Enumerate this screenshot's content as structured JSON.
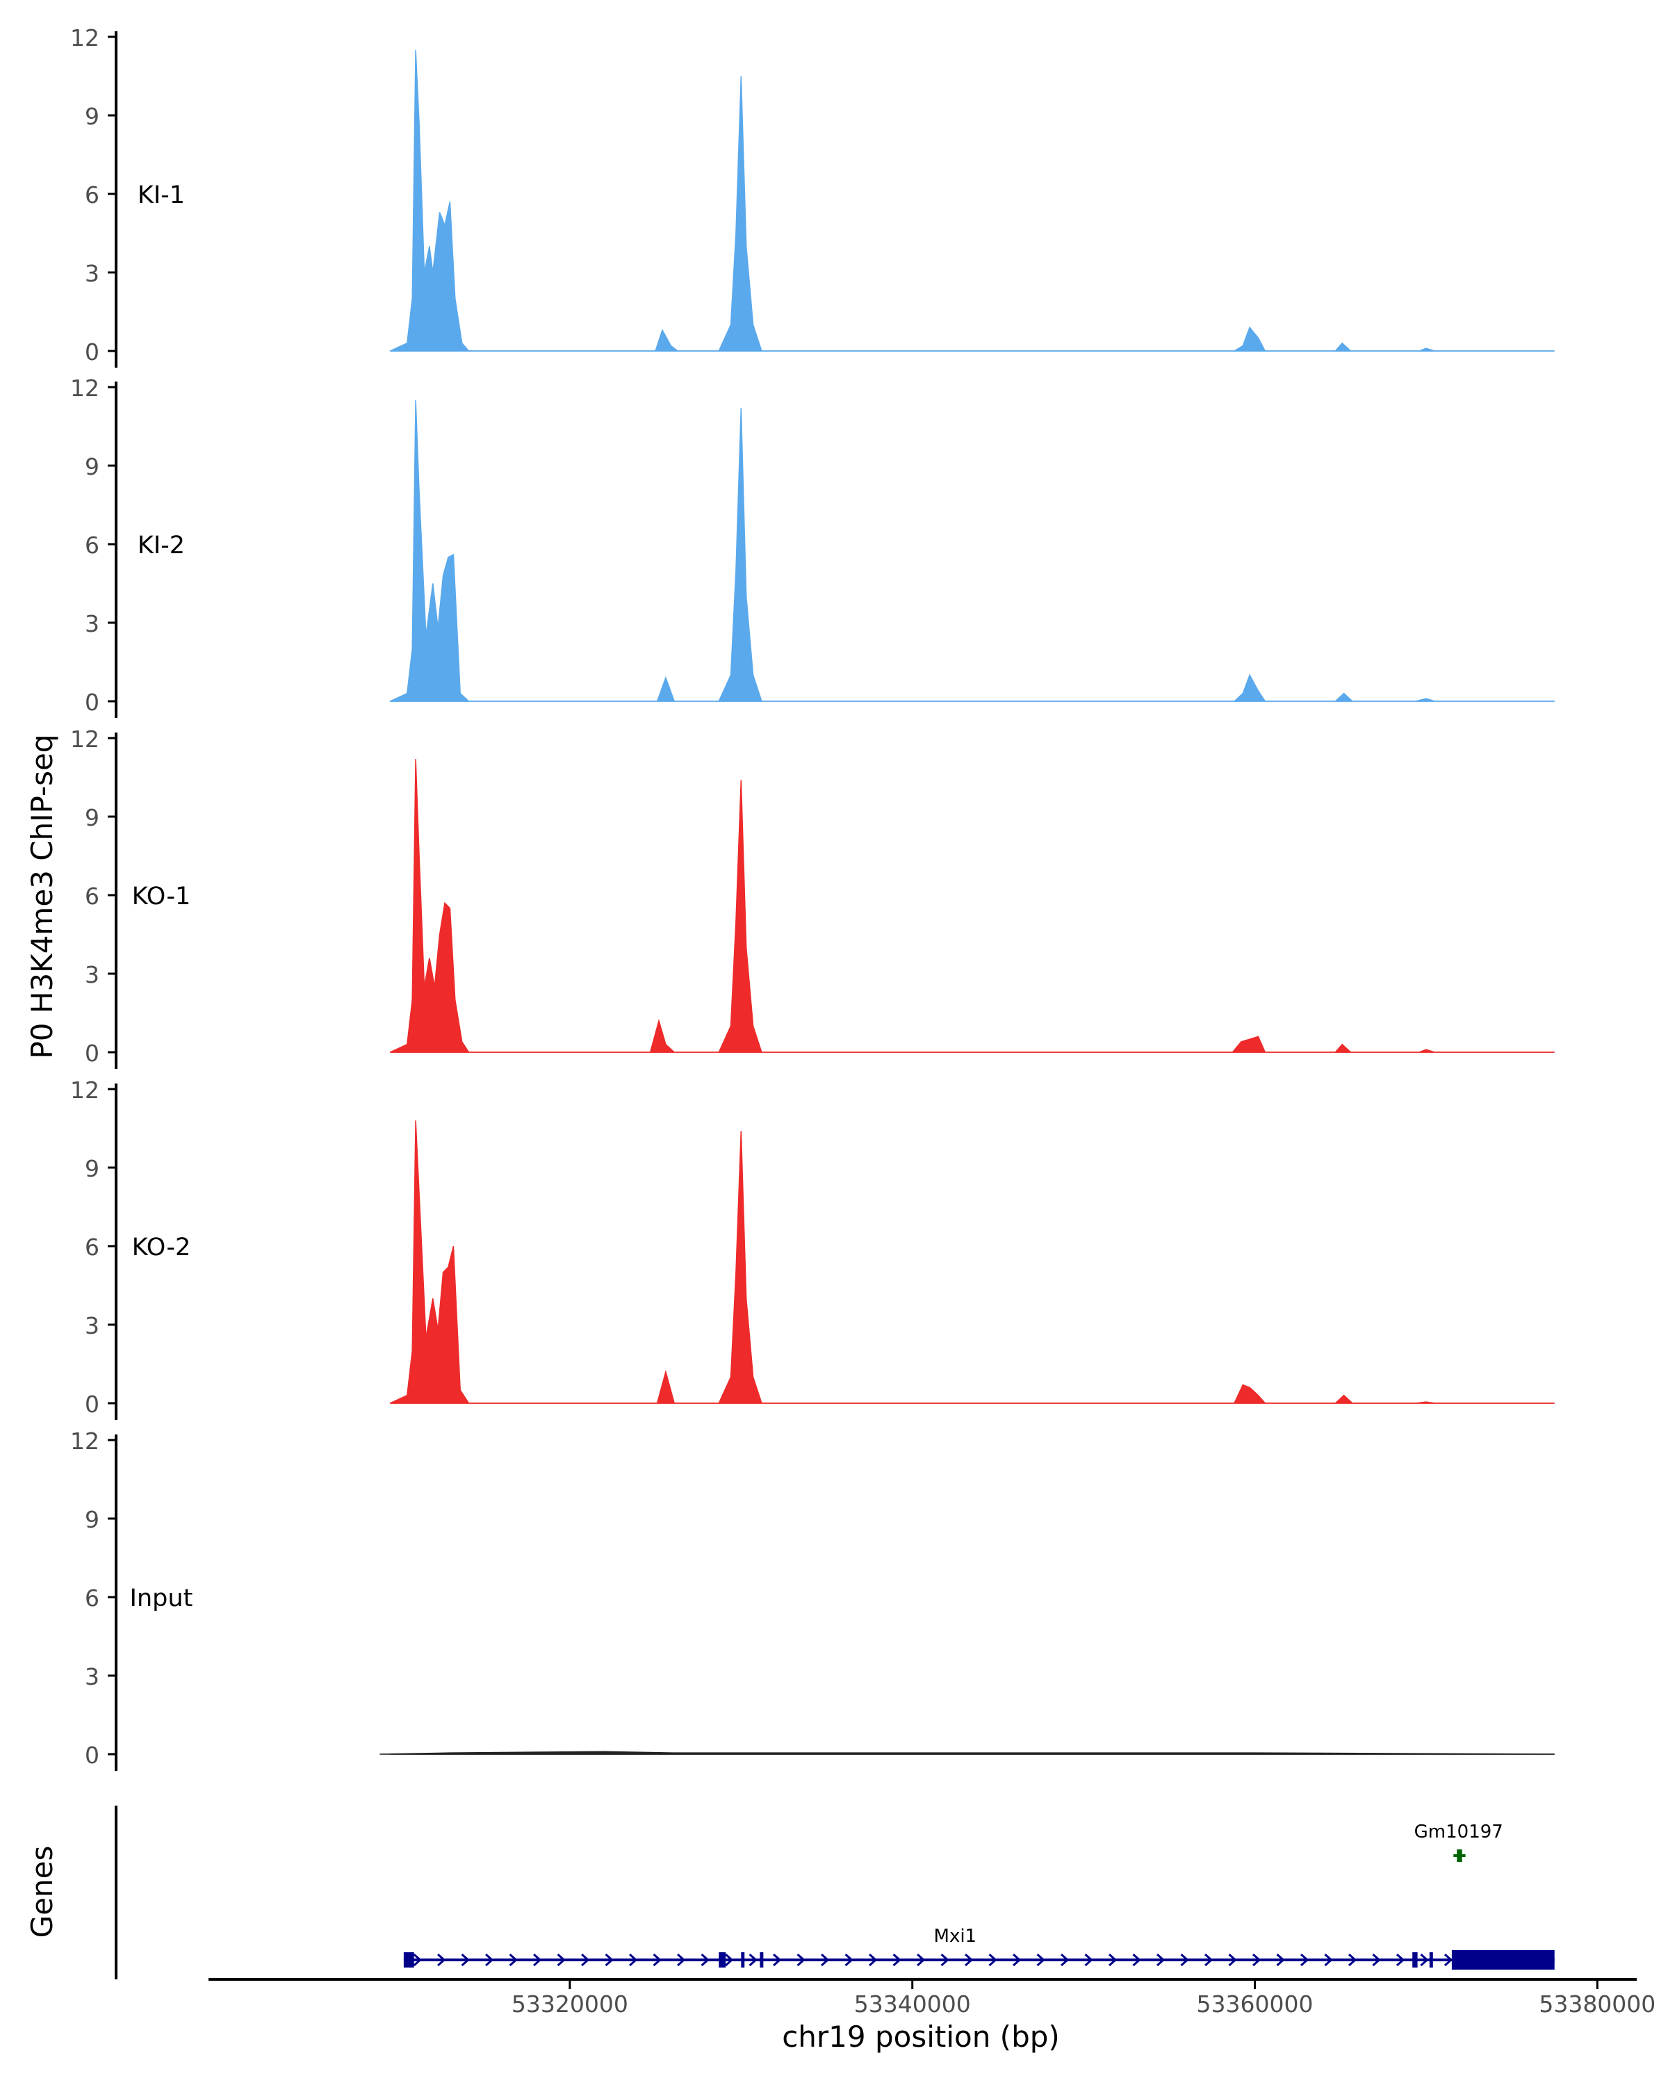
{
  "chart_data": {
    "type": "area",
    "ylabel": "P0 H3K4me3 ChIP-seq",
    "xlabel": "chr19 position (bp)",
    "xlim": [
      53298900,
      53382300
    ],
    "ylim": [
      0,
      12
    ],
    "y_ticks": [
      "0",
      "3",
      "6",
      "9",
      "12"
    ],
    "x_ticks": [
      {
        "value": 53320000,
        "label": "53320000"
      },
      {
        "value": 53340000,
        "label": "53340000"
      },
      {
        "value": 53360000,
        "label": "53360000"
      },
      {
        "value": 53380000,
        "label": "53380000"
      }
    ],
    "colors": {
      "KI": "#5aa9ec",
      "KO": "#ee2a2a",
      "Input": "#222222",
      "gene_main": "#00008b",
      "gene_small": "#006400"
    },
    "series": [
      {
        "name": "KI-1",
        "color": "#5aa9ec",
        "points": [
          [
            53309500,
            0
          ],
          [
            53310500,
            0.3
          ],
          [
            53310800,
            2.0
          ],
          [
            53311000,
            11.5
          ],
          [
            53311200,
            8.7
          ],
          [
            53311500,
            3.0
          ],
          [
            53311800,
            4.0
          ],
          [
            53312000,
            3.0
          ],
          [
            53312400,
            5.3
          ],
          [
            53312700,
            4.8
          ],
          [
            53313000,
            5.7
          ],
          [
            53313300,
            2.0
          ],
          [
            53313700,
            0.3
          ],
          [
            53314100,
            0
          ],
          [
            53325000,
            0
          ],
          [
            53325400,
            0.8
          ],
          [
            53325900,
            0.2
          ],
          [
            53326300,
            0
          ],
          [
            53328700,
            0
          ],
          [
            53329400,
            1.0
          ],
          [
            53329700,
            4.5
          ],
          [
            53330000,
            10.5
          ],
          [
            53330300,
            4.0
          ],
          [
            53330700,
            1.0
          ],
          [
            53331200,
            0
          ],
          [
            53358800,
            0
          ],
          [
            53359300,
            0.2
          ],
          [
            53359700,
            0.9
          ],
          [
            53360200,
            0.5
          ],
          [
            53360600,
            0
          ],
          [
            53364700,
            0
          ],
          [
            53365100,
            0.3
          ],
          [
            53365600,
            0
          ],
          [
            53369600,
            0
          ],
          [
            53370000,
            0.1
          ],
          [
            53370500,
            0
          ],
          [
            53377500,
            0
          ]
        ]
      },
      {
        "name": "KI-2",
        "color": "#5aa9ec",
        "points": [
          [
            53309500,
            0
          ],
          [
            53310500,
            0.3
          ],
          [
            53310800,
            2.0
          ],
          [
            53311000,
            11.5
          ],
          [
            53311200,
            8.0
          ],
          [
            53311600,
            2.5
          ],
          [
            53312000,
            4.5
          ],
          [
            53312300,
            2.8
          ],
          [
            53312600,
            4.8
          ],
          [
            53312900,
            5.5
          ],
          [
            53313200,
            5.6
          ],
          [
            53313600,
            0.3
          ],
          [
            53314100,
            0
          ],
          [
            53325100,
            0
          ],
          [
            53325600,
            0.9
          ],
          [
            53326100,
            0
          ],
          [
            53328700,
            0
          ],
          [
            53329400,
            1.0
          ],
          [
            53329700,
            5.0
          ],
          [
            53330000,
            11.2
          ],
          [
            53330300,
            4.0
          ],
          [
            53330700,
            1.0
          ],
          [
            53331200,
            0
          ],
          [
            53358800,
            0
          ],
          [
            53359300,
            0.3
          ],
          [
            53359700,
            1.0
          ],
          [
            53360200,
            0.4
          ],
          [
            53360600,
            0
          ],
          [
            53364700,
            0
          ],
          [
            53365200,
            0.3
          ],
          [
            53365700,
            0
          ],
          [
            53369400,
            0
          ],
          [
            53370000,
            0.1
          ],
          [
            53370500,
            0
          ],
          [
            53377500,
            0
          ]
        ]
      },
      {
        "name": "KO-1",
        "color": "#ee2a2a",
        "points": [
          [
            53309500,
            0
          ],
          [
            53310500,
            0.3
          ],
          [
            53310800,
            2.0
          ],
          [
            53311000,
            11.2
          ],
          [
            53311200,
            7.5
          ],
          [
            53311500,
            2.5
          ],
          [
            53311800,
            3.6
          ],
          [
            53312100,
            2.5
          ],
          [
            53312400,
            4.5
          ],
          [
            53312700,
            5.7
          ],
          [
            53313000,
            5.5
          ],
          [
            53313300,
            2.0
          ],
          [
            53313700,
            0.4
          ],
          [
            53314100,
            0
          ],
          [
            53324700,
            0
          ],
          [
            53325200,
            1.2
          ],
          [
            53325600,
            0.3
          ],
          [
            53326100,
            0
          ],
          [
            53328700,
            0
          ],
          [
            53329400,
            1.0
          ],
          [
            53329700,
            5.0
          ],
          [
            53330000,
            10.4
          ],
          [
            53330300,
            4.0
          ],
          [
            53330700,
            1.0
          ],
          [
            53331200,
            0
          ],
          [
            53358700,
            0
          ],
          [
            53359200,
            0.4
          ],
          [
            53359700,
            0.5
          ],
          [
            53360200,
            0.6
          ],
          [
            53360600,
            0
          ],
          [
            53364700,
            0
          ],
          [
            53365100,
            0.3
          ],
          [
            53365600,
            0
          ],
          [
            53369600,
            0
          ],
          [
            53370000,
            0.1
          ],
          [
            53370500,
            0
          ],
          [
            53377500,
            0
          ]
        ]
      },
      {
        "name": "KO-2",
        "color": "#ee2a2a",
        "points": [
          [
            53309500,
            0
          ],
          [
            53310500,
            0.3
          ],
          [
            53310800,
            2.0
          ],
          [
            53311000,
            10.8
          ],
          [
            53311200,
            8.0
          ],
          [
            53311600,
            2.5
          ],
          [
            53312000,
            4.0
          ],
          [
            53312300,
            2.8
          ],
          [
            53312600,
            5.0
          ],
          [
            53312900,
            5.2
          ],
          [
            53313200,
            6.0
          ],
          [
            53313600,
            0.5
          ],
          [
            53314100,
            0
          ],
          [
            53325100,
            0
          ],
          [
            53325600,
            1.2
          ],
          [
            53326100,
            0
          ],
          [
            53328700,
            0
          ],
          [
            53329400,
            1.0
          ],
          [
            53329700,
            5.0
          ],
          [
            53330000,
            10.4
          ],
          [
            53330300,
            4.0
          ],
          [
            53330700,
            1.0
          ],
          [
            53331200,
            0
          ],
          [
            53358800,
            0
          ],
          [
            53359300,
            0.7
          ],
          [
            53359700,
            0.6
          ],
          [
            53360200,
            0.3
          ],
          [
            53360600,
            0
          ],
          [
            53364700,
            0
          ],
          [
            53365200,
            0.3
          ],
          [
            53365700,
            0
          ],
          [
            53369400,
            0
          ],
          [
            53370000,
            0.05
          ],
          [
            53370500,
            0
          ],
          [
            53377500,
            0
          ]
        ]
      },
      {
        "name": "Input",
        "color": "#222222",
        "points": [
          [
            53308900,
            0
          ],
          [
            53313000,
            0.05
          ],
          [
            53322000,
            0.1
          ],
          [
            53326000,
            0.05
          ],
          [
            53340000,
            0.05
          ],
          [
            53360000,
            0.05
          ],
          [
            53377500,
            0
          ]
        ]
      }
    ],
    "genes": {
      "panel_label": "Genes",
      "items": [
        {
          "name": "Mxi1",
          "start": 53310300,
          "end": 53377500,
          "strand": "+",
          "color": "#00008b",
          "exons": [
            [
              53310300,
              53310900
            ],
            [
              53328700,
              53329100
            ],
            [
              53330000,
              53330200
            ],
            [
              53331100,
              53331300
            ],
            [
              53369200,
              53369500
            ],
            [
              53370200,
              53370400
            ],
            [
              53371500,
              53377500
            ]
          ]
        },
        {
          "name": "Gm10197",
          "start": 53371600,
          "end": 53372300,
          "strand": "-",
          "color": "#006400",
          "exons": [
            [
              53371800,
              53372100
            ]
          ]
        }
      ]
    }
  }
}
